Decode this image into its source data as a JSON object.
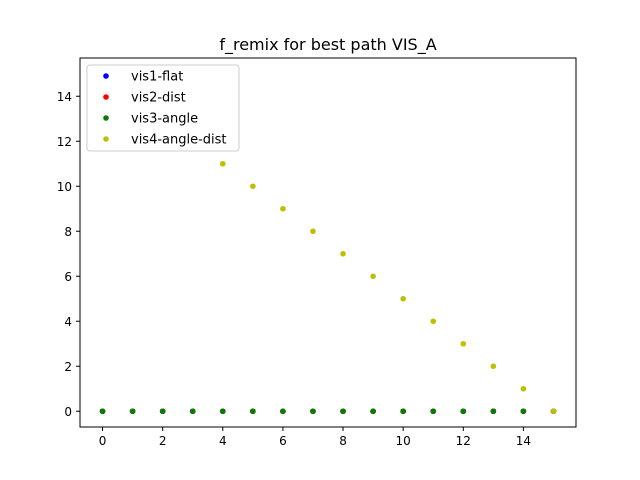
{
  "chart_data": {
    "type": "scatter",
    "title": "f_remix for best path VIS_A",
    "xlabel": "",
    "ylabel": "",
    "xlim": [
      -0.75,
      15.75
    ],
    "ylim": [
      -0.7,
      15.7
    ],
    "xticks": [
      0,
      2,
      4,
      6,
      8,
      10,
      12,
      14
    ],
    "yticks": [
      0,
      2,
      4,
      6,
      8,
      10,
      12,
      14
    ],
    "grid": false,
    "legend_position": "upper-left",
    "x": [
      0,
      1,
      2,
      3,
      4,
      5,
      6,
      7,
      8,
      9,
      10,
      11,
      12,
      13,
      14,
      15
    ],
    "series": [
      {
        "name": "vis1-flat",
        "color": "#0000ff",
        "values": [
          0,
          0,
          0,
          0,
          0,
          0,
          0,
          0,
          0,
          0,
          0,
          0,
          0,
          0,
          0,
          0
        ]
      },
      {
        "name": "vis2-dist",
        "color": "#ff0000",
        "values": [
          0,
          0,
          0,
          0,
          0,
          0,
          0,
          0,
          0,
          0,
          0,
          0,
          0,
          0,
          0,
          0
        ]
      },
      {
        "name": "vis3-angle",
        "color": "#008000",
        "values": [
          0,
          0,
          0,
          0,
          0,
          0,
          0,
          0,
          0,
          0,
          0,
          0,
          0,
          0,
          0,
          0
        ]
      },
      {
        "name": "vis4-angle-dist",
        "color": "#bfbf00",
        "x": [
          4,
          5,
          6,
          7,
          8,
          9,
          10,
          11,
          12,
          13,
          14,
          15
        ],
        "values": [
          11,
          10,
          9,
          8,
          7,
          6,
          5,
          4,
          3,
          2,
          1,
          0
        ]
      }
    ]
  }
}
